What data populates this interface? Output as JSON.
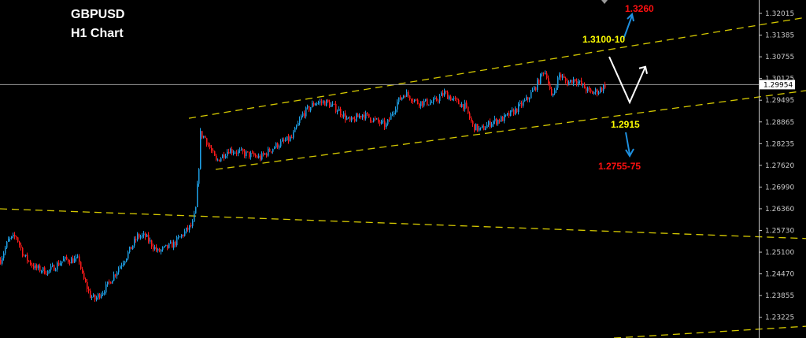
{
  "chart_data": {
    "type": "candlestick",
    "title": "GBPUSD",
    "subtitle": "H1 Chart",
    "ylim": [
      1.2258,
      1.3236
    ],
    "y_ticks": [
      "1.32015",
      "1.31385",
      "1.30755",
      "1.30125",
      "1.29495",
      "1.28865",
      "1.28235",
      "1.27620",
      "1.26990",
      "1.26360",
      "1.25730",
      "1.25100",
      "1.24470",
      "1.23855",
      "1.23225"
    ],
    "current_price": "1.29954",
    "grid": false,
    "colors": {
      "up": "#1ea0e6",
      "down": "#ff1a1a",
      "trendline": "#d4c800",
      "price_line": "#9a9a9a",
      "label_yellow": "#ffff00",
      "label_red": "#ff1010",
      "arrow_blue": "#1e90e0",
      "projection": "#ffffff"
    },
    "price_path": [
      [
        0,
        1.2488
      ],
      [
        5,
        1.2545
      ],
      [
        10,
        1.2556
      ],
      [
        15,
        1.2499
      ],
      [
        22,
        1.2465
      ],
      [
        30,
        1.2454
      ],
      [
        40,
        1.2488
      ],
      [
        50,
        1.2488
      ],
      [
        52,
        1.2442
      ],
      [
        57,
        1.2385
      ],
      [
        60,
        1.2374
      ],
      [
        67,
        1.2408
      ],
      [
        75,
        1.2465
      ],
      [
        80,
        1.2499
      ],
      [
        87,
        1.2556
      ],
      [
        92,
        1.2556
      ],
      [
        100,
        1.2511
      ],
      [
        110,
        1.2534
      ],
      [
        117,
        1.2568
      ],
      [
        122,
        1.2591
      ],
      [
        124,
        1.2636
      ],
      [
        126,
        1.2761
      ],
      [
        127,
        1.2853
      ],
      [
        130,
        1.2841
      ],
      [
        137,
        1.2773
      ],
      [
        145,
        1.2807
      ],
      [
        155,
        1.2796
      ],
      [
        165,
        1.2784
      ],
      [
        175,
        1.2819
      ],
      [
        185,
        1.2841
      ],
      [
        192,
        1.291
      ],
      [
        200,
        1.2944
      ],
      [
        207,
        1.2944
      ],
      [
        215,
        1.2921
      ],
      [
        222,
        1.2887
      ],
      [
        230,
        1.291
      ],
      [
        240,
        1.2887
      ],
      [
        245,
        1.2876
      ],
      [
        252,
        1.2944
      ],
      [
        257,
        1.2971
      ],
      [
        265,
        1.2944
      ],
      [
        275,
        1.2944
      ],
      [
        282,
        1.2971
      ],
      [
        290,
        1.2944
      ],
      [
        295,
        1.2933
      ],
      [
        300,
        1.2876
      ],
      [
        305,
        1.2864
      ],
      [
        312,
        1.2887
      ],
      [
        320,
        1.2898
      ],
      [
        327,
        1.2921
      ],
      [
        335,
        1.2955
      ],
      [
        340,
        1.299
      ],
      [
        345,
        1.3035
      ],
      [
        347,
        1.3024
      ],
      [
        350,
        1.2955
      ],
      [
        355,
        1.3024
      ],
      [
        360,
        1.3001
      ],
      [
        365,
        1.3012
      ],
      [
        370,
        1.299
      ],
      [
        375,
        1.2971
      ],
      [
        380,
        1.2978
      ],
      [
        384,
        1.2994
      ]
    ],
    "trendlines": [
      {
        "from": [
          120,
          1.2898
        ],
        "to": [
          512,
          1.319
        ]
      },
      {
        "from": [
          137,
          1.275
        ],
        "to": [
          512,
          1.2978
        ]
      },
      {
        "from": [
          0,
          1.2636
        ],
        "to": [
          512,
          1.255
        ]
      },
      {
        "from": [
          390,
          1.2262
        ],
        "to": [
          512,
          1.2296
        ]
      }
    ],
    "projection": [
      [
        387,
        1.3076
      ],
      [
        400,
        1.2944
      ],
      [
        410,
        1.3047
      ]
    ],
    "annotations": {
      "target_up": "1.3260",
      "resistance": "1.3100-10",
      "support": "1.2915",
      "target_down": "1.2755-75"
    }
  }
}
